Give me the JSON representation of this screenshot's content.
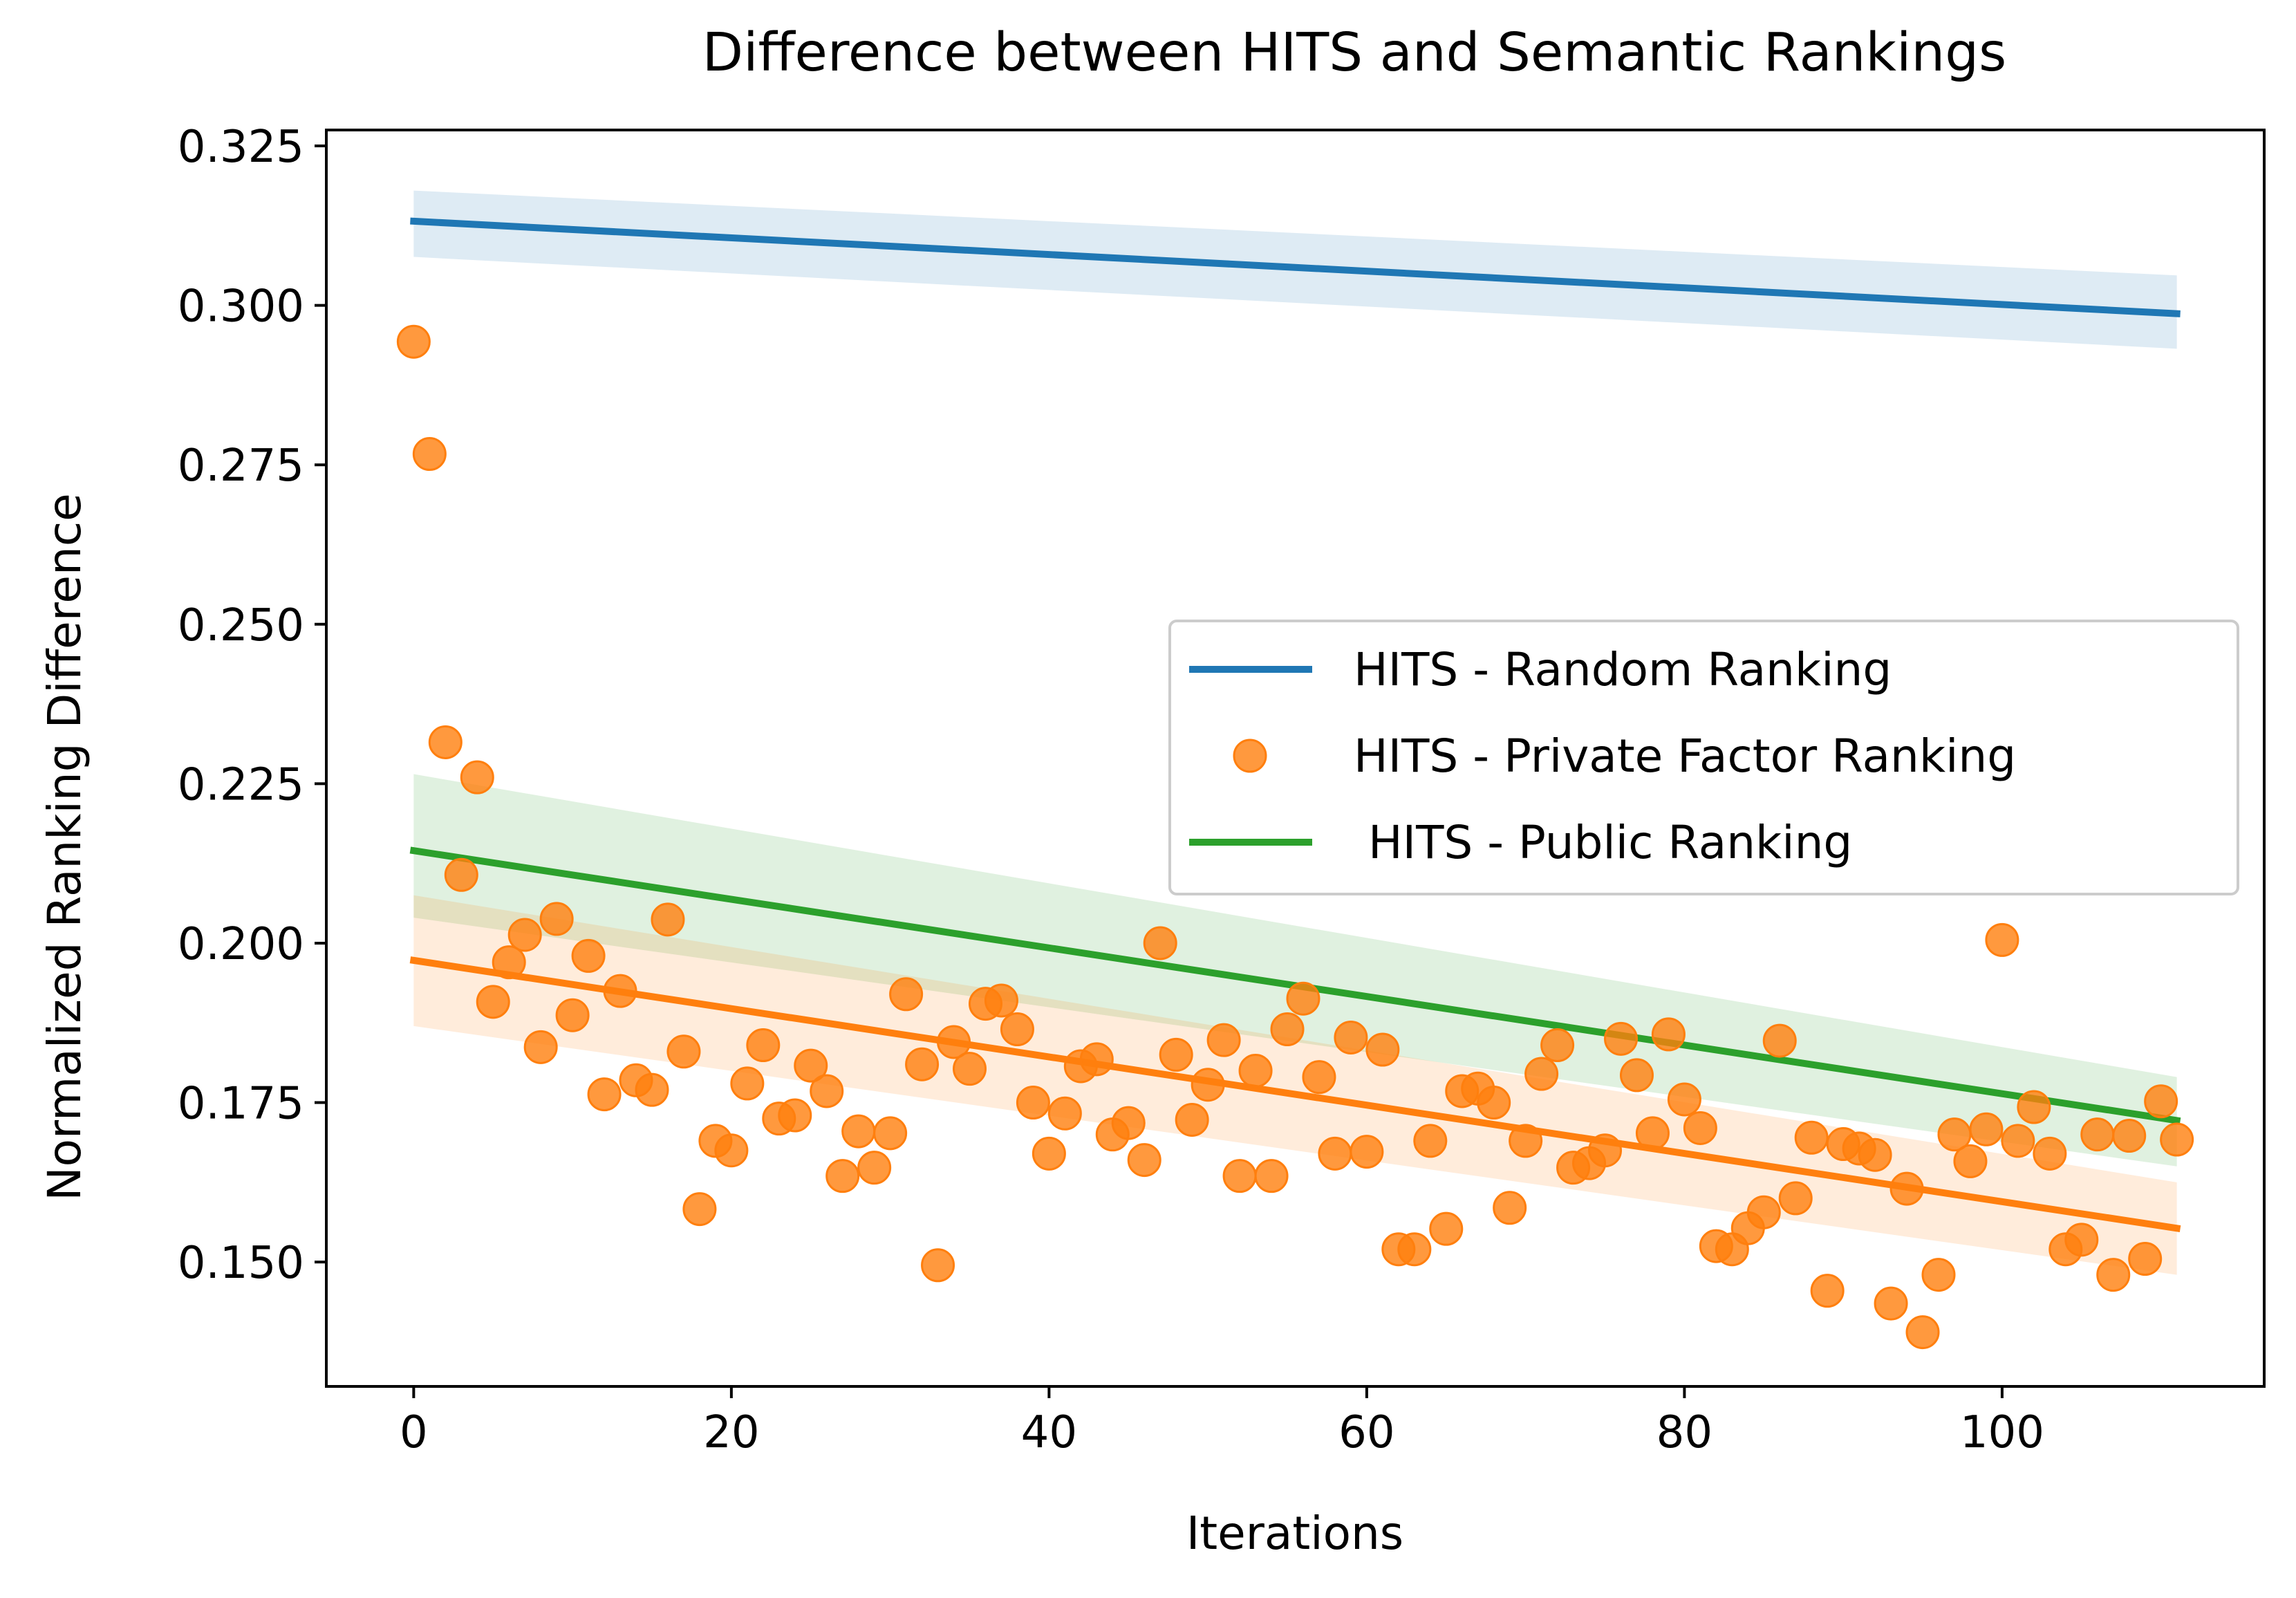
{
  "chart_data": {
    "type": "scatter",
    "title": "Difference between HITS and Semantic Rankings",
    "xlabel": "Iterations",
    "ylabel": "Normalized Ranking Difference",
    "xlim": [
      -5.5,
      116.5
    ],
    "ylim": [
      0.1305,
      0.3275
    ],
    "x_ticks": [
      0,
      20,
      40,
      60,
      80,
      100
    ],
    "x_tick_labels": [
      "0",
      "20",
      "40",
      "60",
      "80",
      "100"
    ],
    "y_ticks": [
      0.15,
      0.175,
      0.2,
      0.225,
      0.25,
      0.275,
      0.3,
      0.325
    ],
    "y_tick_labels": [
      "0.150",
      "0.175",
      "0.200",
      "0.225",
      "0.250",
      "0.275",
      "0.300",
      "0.325"
    ],
    "grid": false,
    "legend_position": "center-right",
    "legend": [
      {
        "label": "HITS - Random Ranking",
        "marker": "line",
        "color": "#1f77b4"
      },
      {
        "label": "HITS - Private Factor Ranking",
        "marker": "circle",
        "color": "#ff7f0e"
      },
      {
        "label": " HITS - Public Ranking",
        "marker": "line",
        "color": "#2ca02c"
      }
    ],
    "regression_lines": [
      {
        "series": "random",
        "color": "#1f77b4",
        "x": [
          0,
          111
        ],
        "y": [
          0.3132,
          0.2987
        ],
        "ci_upper": [
          0.318,
          0.3047
        ],
        "ci_lower": [
          0.3076,
          0.2932
        ]
      },
      {
        "series": "public",
        "color": "#2ca02c",
        "x": [
          0,
          111
        ],
        "y": [
          0.2145,
          0.1722
        ],
        "ci_upper": [
          0.2265,
          0.179
        ],
        "ci_lower": [
          0.204,
          0.165
        ]
      },
      {
        "series": "private",
        "color": "#ff7f0e",
        "x": [
          0,
          111
        ],
        "y": [
          0.1973,
          0.1553
        ],
        "ci_upper": [
          0.2075,
          0.1625
        ],
        "ci_lower": [
          0.187,
          0.148
        ]
      }
    ],
    "series": [
      {
        "name": "HITS - Private Factor Ranking",
        "color": "#ff7f0e",
        "points": [
          [
            0,
            0.2943
          ],
          [
            1,
            0.2767
          ],
          [
            2,
            0.2315
          ],
          [
            3,
            0.2107
          ],
          [
            4,
            0.226
          ],
          [
            5,
            0.1908
          ],
          [
            6,
            0.197
          ],
          [
            7,
            0.2013
          ],
          [
            8,
            0.1837
          ],
          [
            9,
            0.2038
          ],
          [
            10,
            0.1887
          ],
          [
            11,
            0.198
          ],
          [
            12,
            0.1763
          ],
          [
            13,
            0.1925
          ],
          [
            14,
            0.1785
          ],
          [
            15,
            0.177
          ],
          [
            16,
            0.2037
          ],
          [
            17,
            0.183
          ],
          [
            18,
            0.1583
          ],
          [
            19,
            0.169
          ],
          [
            20,
            0.1675
          ],
          [
            21,
            0.178
          ],
          [
            22,
            0.184
          ],
          [
            23,
            0.1725
          ],
          [
            24,
            0.173
          ],
          [
            25,
            0.1808
          ],
          [
            26,
            0.1768
          ],
          [
            27,
            0.1635
          ],
          [
            28,
            0.1705
          ],
          [
            29,
            0.1648
          ],
          [
            30,
            0.1702
          ],
          [
            31,
            0.192
          ],
          [
            32,
            0.181
          ],
          [
            33,
            0.1495
          ],
          [
            34,
            0.1845
          ],
          [
            35,
            0.1803
          ],
          [
            36,
            0.1905
          ],
          [
            37,
            0.191
          ],
          [
            38,
            0.1865
          ],
          [
            39,
            0.175
          ],
          [
            40,
            0.167
          ],
          [
            41,
            0.1733
          ],
          [
            42,
            0.1807
          ],
          [
            43,
            0.1818
          ],
          [
            44,
            0.17
          ],
          [
            45,
            0.1718
          ],
          [
            46,
            0.166
          ],
          [
            47,
            0.2
          ],
          [
            48,
            0.1825
          ],
          [
            49,
            0.1723
          ],
          [
            50,
            0.1778
          ],
          [
            51,
            0.1848
          ],
          [
            52,
            0.1635
          ],
          [
            53,
            0.18
          ],
          [
            54,
            0.1635
          ],
          [
            55,
            0.1865
          ],
          [
            56,
            0.1913
          ],
          [
            57,
            0.179
          ],
          [
            58,
            0.167
          ],
          [
            59,
            0.1852
          ],
          [
            60,
            0.1673
          ],
          [
            61,
            0.1833
          ],
          [
            62,
            0.152
          ],
          [
            63,
            0.152
          ],
          [
            64,
            0.169
          ],
          [
            65,
            0.1552
          ],
          [
            66,
            0.1768
          ],
          [
            67,
            0.1772
          ],
          [
            68,
            0.175
          ],
          [
            69,
            0.1585
          ],
          [
            70,
            0.169
          ],
          [
            71,
            0.1795
          ],
          [
            72,
            0.184
          ],
          [
            73,
            0.1648
          ],
          [
            74,
            0.1655
          ],
          [
            75,
            0.1675
          ],
          [
            76,
            0.185
          ],
          [
            77,
            0.1793
          ],
          [
            78,
            0.1702
          ],
          [
            79,
            0.1857
          ],
          [
            80,
            0.1755
          ],
          [
            81,
            0.171
          ],
          [
            82,
            0.1525
          ],
          [
            83,
            0.152
          ],
          [
            84,
            0.1553
          ],
          [
            85,
            0.1578
          ],
          [
            86,
            0.1847
          ],
          [
            87,
            0.16
          ],
          [
            88,
            0.1695
          ],
          [
            89,
            0.1455
          ],
          [
            90,
            0.1685
          ],
          [
            91,
            0.1678
          ],
          [
            92,
            0.1668
          ],
          [
            93,
            0.1435
          ],
          [
            94,
            0.1615
          ],
          [
            95,
            0.139
          ],
          [
            96,
            0.148
          ],
          [
            97,
            0.17
          ],
          [
            98,
            0.1658
          ],
          [
            99,
            0.1708
          ],
          [
            100,
            0.2005
          ],
          [
            101,
            0.169
          ],
          [
            102,
            0.1743
          ],
          [
            103,
            0.167
          ],
          [
            104,
            0.152
          ],
          [
            105,
            0.1535
          ],
          [
            106,
            0.17
          ],
          [
            107,
            0.148
          ],
          [
            108,
            0.1698
          ],
          [
            109,
            0.1505
          ],
          [
            110,
            0.1752
          ],
          [
            111,
            0.1692
          ]
        ]
      }
    ]
  }
}
